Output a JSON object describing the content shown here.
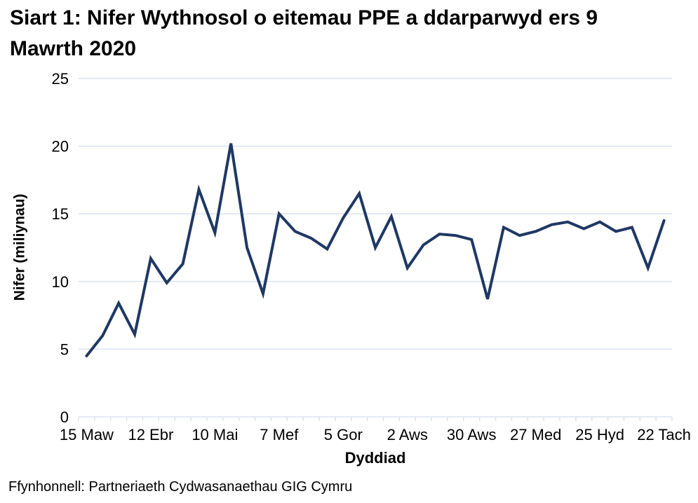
{
  "page": {
    "source": "Ffynhonnell: Partneriaeth Cydwasanaethau GIG Cymru"
  },
  "colors": {
    "line": "#1F3864",
    "grid": "#DAE3F3",
    "text": "#000000",
    "background": "#FFFFFF"
  },
  "chart_data": {
    "type": "line",
    "title": "Siart 1: Nifer Wythnosol o eitemau PPE a ddarparwyd ers 9 Mawrth 2020",
    "xlabel": "Dyddiad",
    "ylabel": "Nifer (miliynau)",
    "ylim": [
      0,
      25
    ],
    "yticks": [
      0,
      5,
      10,
      15,
      20,
      25
    ],
    "grid": "horizontal-light-blue",
    "legend": false,
    "x_tick_labels": [
      "15 Maw",
      "12 Ebr",
      "10 Mai",
      "7 Mef",
      "5 Gor",
      "2 Aws",
      "30 Aws",
      "27 Med",
      "25 Hyd",
      "22 Tach"
    ],
    "x_tick_label_every": 4,
    "n_points": 37,
    "values": [
      4.5,
      6.0,
      8.4,
      6.1,
      11.7,
      9.9,
      11.3,
      16.8,
      13.6,
      20.2,
      12.5,
      9.1,
      15.0,
      13.7,
      13.2,
      12.4,
      14.7,
      16.5,
      12.5,
      14.8,
      11.0,
      12.7,
      13.5,
      13.4,
      13.1,
      8.7,
      14.0,
      13.4,
      13.7,
      14.2,
      14.4,
      13.9,
      14.4,
      13.7,
      14.0,
      11.0,
      14.5
    ]
  }
}
